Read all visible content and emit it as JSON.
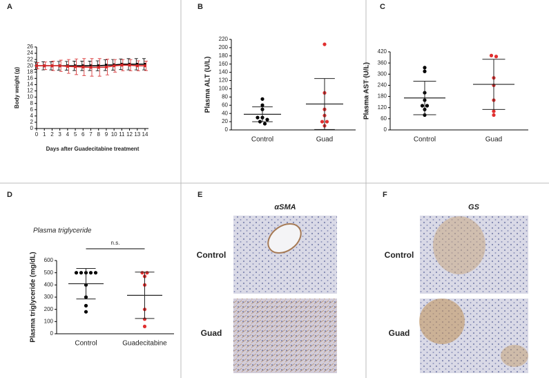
{
  "chart_data": [
    {
      "type": "line",
      "label": "A",
      "xlabel": "Days after Guadecitabine treatment",
      "ylabel": "Body weight (g)",
      "x": [
        0,
        1,
        2,
        3,
        4,
        5,
        6,
        7,
        8,
        9,
        10,
        11,
        12,
        13,
        14
      ],
      "xlim": [
        0,
        14
      ],
      "xticks": [
        0,
        1,
        2,
        3,
        4,
        5,
        6,
        7,
        8,
        9,
        10,
        11,
        12,
        13,
        14
      ],
      "ylim": [
        0,
        26
      ],
      "yticks": [
        0,
        2,
        4,
        6,
        8,
        10,
        12,
        14,
        16,
        18,
        20,
        22,
        24,
        26
      ],
      "series": [
        {
          "color": "#000000",
          "values": [
            20,
            20,
            20,
            20,
            20,
            20,
            20,
            20,
            20,
            20.2,
            20.3,
            20.5,
            20.5,
            20.5,
            20.5
          ],
          "errors": [
            1.2,
            1.3,
            1.3,
            1.4,
            1.4,
            1.5,
            1.5,
            1.5,
            1.6,
            1.7,
            1.7,
            1.7,
            1.8,
            1.8,
            1.8
          ]
        },
        {
          "color": "#d62728",
          "values": [
            20,
            20,
            20,
            20,
            19.8,
            19.7,
            19.6,
            19.5,
            19.5,
            19.6,
            20,
            20.2,
            20.2,
            20,
            20
          ],
          "errors": [
            1,
            1.2,
            1.5,
            1.8,
            2.2,
            2.5,
            2.7,
            2.8,
            2.8,
            2.5,
            2,
            1.8,
            1.8,
            1.6,
            1.5
          ]
        }
      ]
    },
    {
      "type": "dot",
      "label": "B",
      "ylabel": "Plasma ALT (U/L)",
      "categories": [
        "Control",
        "Guad"
      ],
      "ylim": [
        0,
        220
      ],
      "yticks": [
        0,
        20,
        40,
        60,
        80,
        100,
        120,
        140,
        160,
        180,
        200,
        220
      ],
      "groups": [
        {
          "color": "#000000",
          "values": [
            75,
            60,
            50,
            30,
            30,
            25,
            20,
            15
          ],
          "mean": 38,
          "sd": 18
        },
        {
          "color": "#e03030",
          "values": [
            208,
            90,
            50,
            35,
            20,
            20,
            10
          ],
          "mean": 63,
          "sd": 62
        }
      ]
    },
    {
      "type": "dot",
      "label": "C",
      "ylabel": "Plasma AST (U/L)",
      "categories": [
        "Control",
        "Guad"
      ],
      "ylim": [
        0,
        420
      ],
      "yticks": [
        0,
        60,
        120,
        180,
        240,
        300,
        360,
        420
      ],
      "groups": [
        {
          "color": "#000000",
          "values": [
            335,
            315,
            200,
            160,
            130,
            130,
            110,
            80
          ],
          "mean": 172,
          "sd": 90
        },
        {
          "color": "#e03030",
          "values": [
            400,
            395,
            280,
            240,
            160,
            100,
            80
          ],
          "mean": 245,
          "sd": 135
        }
      ]
    },
    {
      "type": "dot",
      "label": "D",
      "title": "Plasma triglyceride",
      "annotation": "n.s.",
      "ylabel": "Plasma triglyceride (mg/dL)",
      "categories": [
        "Control",
        "Guadecitabine"
      ],
      "ylim": [
        0,
        600
      ],
      "yticks": [
        0,
        100,
        200,
        300,
        400,
        500,
        600
      ],
      "groups": [
        {
          "color": "#000000",
          "values": [
            500,
            500,
            500,
            500,
            500,
            400,
            300,
            230,
            180
          ],
          "mean": 410,
          "sd": 125
        },
        {
          "color": "#e03030",
          "values": [
            500,
            500,
            470,
            400,
            200,
            120,
            60
          ],
          "mean": 315,
          "sd": 190
        }
      ]
    }
  ],
  "image_panels": [
    {
      "label": "E",
      "title": "αSMA",
      "rows": [
        "Control",
        "Guad"
      ]
    },
    {
      "label": "F",
      "title": "GS",
      "rows": [
        "Control",
        "Guad"
      ]
    }
  ]
}
